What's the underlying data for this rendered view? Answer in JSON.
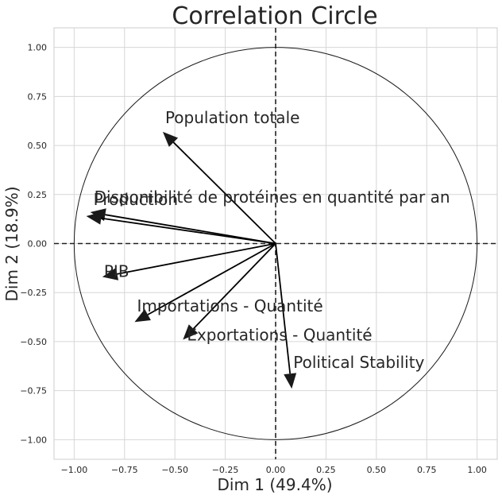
{
  "chart_data": {
    "type": "scatter",
    "subtype": "correlation-circle",
    "title": "Correlation Circle",
    "xlabel": "Dim 1 (49.4%)",
    "ylabel": "Dim 2 (18.9%)",
    "xlim": [
      -1.1,
      1.1
    ],
    "ylim": [
      -1.1,
      1.1
    ],
    "xticks": [
      -1.0,
      -0.75,
      -0.5,
      -0.25,
      0.0,
      0.25,
      0.5,
      0.75,
      1.0
    ],
    "yticks": [
      -1.0,
      -0.75,
      -0.5,
      -0.25,
      0.0,
      0.25,
      0.5,
      0.75,
      1.0
    ],
    "xtick_labels": [
      "−1.00",
      "−0.75",
      "−0.50",
      "−0.25",
      "0.00",
      "0.25",
      "0.50",
      "0.75",
      "1.00"
    ],
    "ytick_labels": [
      "−1.00",
      "−0.75",
      "−0.50",
      "−0.25",
      "0.00",
      "0.25",
      "0.50",
      "0.75",
      "1.00"
    ],
    "grid": true,
    "unit_circle": true,
    "reference_lines": [
      0.0
    ],
    "arrow_color": "#000000",
    "vectors": [
      {
        "label": "Population totale",
        "x": -0.56,
        "y": 0.57
      },
      {
        "label": "Production",
        "x": -0.92,
        "y": 0.16
      },
      {
        "label": "Disponibilité de protéines en quantité par an",
        "x": -0.94,
        "y": 0.14
      },
      {
        "label": "PIB",
        "x": -0.86,
        "y": -0.17
      },
      {
        "label": "Importations - Quantité",
        "x": -0.7,
        "y": -0.4
      },
      {
        "label": "Exportations - Quantité",
        "x": -0.46,
        "y": -0.49
      },
      {
        "label": "Political Stability",
        "x": 0.08,
        "y": -0.74
      }
    ]
  }
}
